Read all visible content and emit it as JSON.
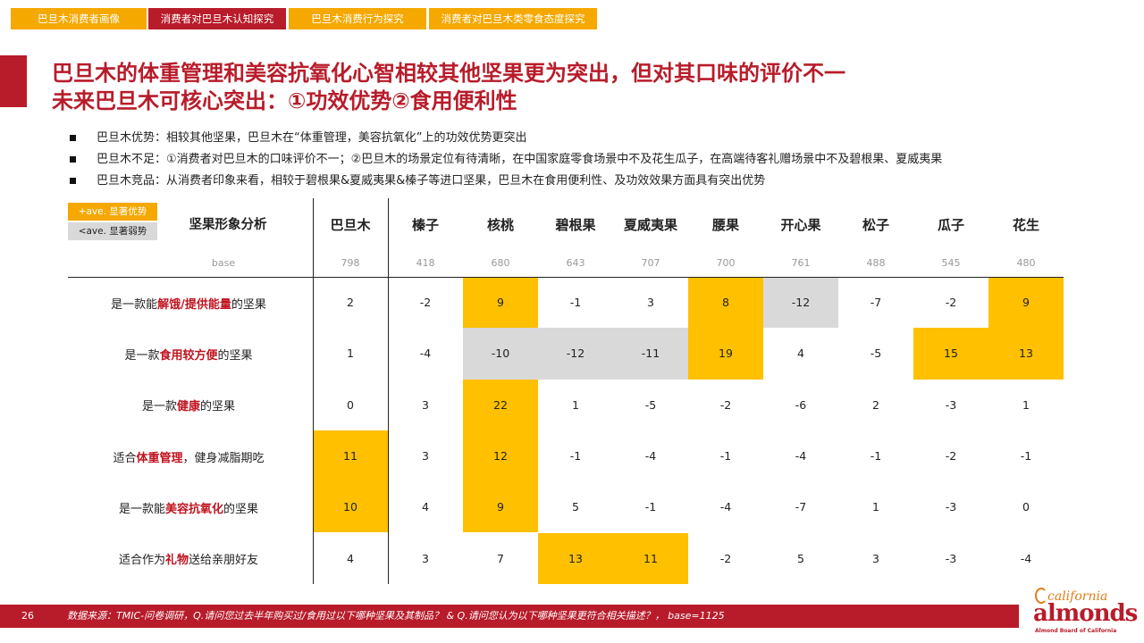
{
  "tabs": [
    {
      "label": "巴旦木消费者画像",
      "active": false
    },
    {
      "label": "消费者对巴旦木认知探究",
      "active": true
    },
    {
      "label": "巴旦木消费行为探究",
      "active": false
    },
    {
      "label": "消费者对巴旦木类零食态度探究",
      "active": false
    }
  ],
  "title": {
    "line1": "巴旦木的体重管理和美容抗氧化心智相较其他坚果更为突出，但对其口味的评价不一",
    "line2": "未来巴旦木可核心突出：①功效优势②食用便利性"
  },
  "bullets": [
    "巴旦木优势：相较其他坚果，巴旦木在“体重管理，美容抗氧化”上的功效优势更突出",
    "巴旦木不足：①消费者对巴旦木的口味评价不一；②巴旦木的场景定位有待清晰，在中国家庭零食场景中不及花生瓜子，在高端待客礼赠场景中不及碧根果、夏威夷果",
    "巴旦木竞品：从消费者印象来看，相较于碧根果&夏威夷果&榛子等进口坚果，巴旦木在食用便利性、及功效效果方面具有突出优势"
  ],
  "legend": {
    "above": "+ave. 显著优势",
    "below": "<ave. 显著弱势"
  },
  "table": {
    "title": "坚果形象分析",
    "base_label": "base",
    "columns": [
      {
        "name": "巴旦木",
        "base": "798"
      },
      {
        "name": "榛子",
        "base": "418"
      },
      {
        "name": "核桃",
        "base": "680"
      },
      {
        "name": "碧根果",
        "base": "643"
      },
      {
        "name": "夏威夷果",
        "base": "707"
      },
      {
        "name": "腰果",
        "base": "700"
      },
      {
        "name": "开心果",
        "base": "761"
      },
      {
        "name": "松子",
        "base": "488"
      },
      {
        "name": "瓜子",
        "base": "545"
      },
      {
        "name": "花生",
        "base": "480"
      }
    ],
    "rows": [
      {
        "pre": "是一款能",
        "hl": "解饿/提供能量",
        "post": "的坚果",
        "values": [
          "2",
          "-2",
          "9",
          "-1",
          "3",
          "8",
          "-12",
          "-7",
          "-2",
          "9"
        ],
        "flags": [
          "",
          "",
          "y",
          "",
          "",
          "y",
          "g",
          "",
          "",
          "y"
        ]
      },
      {
        "pre": "是一款",
        "hl": "食用较方便",
        "post": "的坚果",
        "values": [
          "1",
          "-4",
          "-10",
          "-12",
          "-11",
          "19",
          "4",
          "-5",
          "15",
          "13"
        ],
        "flags": [
          "",
          "",
          "g",
          "g",
          "g",
          "y",
          "",
          "",
          "y",
          "y"
        ]
      },
      {
        "pre": "是一款",
        "hl": "健康",
        "post": "的坚果",
        "values": [
          "0",
          "3",
          "22",
          "1",
          "-5",
          "-2",
          "-6",
          "2",
          "-3",
          "1"
        ],
        "flags": [
          "",
          "",
          "y",
          "",
          "",
          "",
          "",
          "",
          "",
          ""
        ]
      },
      {
        "pre": "适合",
        "hl": "体重管理",
        "post": "，健身减脂期吃",
        "values": [
          "11",
          "3",
          "12",
          "-1",
          "-4",
          "-1",
          "-4",
          "-1",
          "-2",
          "-1"
        ],
        "flags": [
          "y",
          "",
          "y",
          "",
          "",
          "",
          "",
          "",
          "",
          ""
        ]
      },
      {
        "pre": "是一款能",
        "hl": "美容抗氧化",
        "post": "的坚果",
        "values": [
          "10",
          "4",
          "9",
          "5",
          "-1",
          "-4",
          "-7",
          "1",
          "-3",
          "0"
        ],
        "flags": [
          "y",
          "",
          "y",
          "",
          "",
          "",
          "",
          "",
          "",
          ""
        ]
      },
      {
        "pre": "适合作为",
        "hl": "礼物",
        "post": "送给亲朋好友",
        "values": [
          "4",
          "3",
          "7",
          "13",
          "11",
          "-2",
          "5",
          "3",
          "-3",
          "-4"
        ],
        "flags": [
          "",
          "",
          "",
          "y",
          "y",
          "",
          "",
          "",
          "",
          ""
        ]
      }
    ]
  },
  "footer": {
    "page": "26",
    "source": "数据来源：TMIC-问卷调研，Q.请问您过去半年购买过/食用过以下哪种坚果及其制品？ & Q.请问您认为以下哪种坚果更符合相关描述？， base=1125"
  },
  "logo": {
    "brand_top": "california",
    "brand": "almonds",
    "tagline": "Almond Board of California"
  },
  "colors": {
    "brand_red": "#b81c2a",
    "highlight_red": "#c0141f",
    "tab_orange": "#f5a800",
    "above_yellow": "#ffc000",
    "below_gray": "#d9d9d9"
  }
}
